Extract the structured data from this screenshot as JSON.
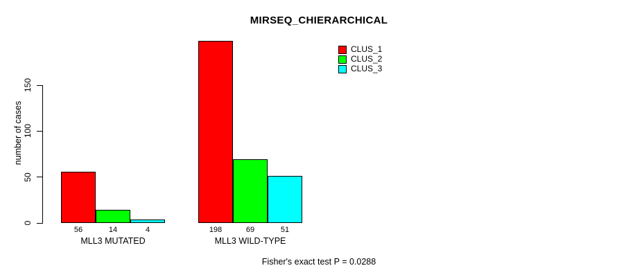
{
  "title": "MIRSEQ_CHIERARCHICAL",
  "ylabel": "number of cases",
  "caption": "Fisher's exact test P = 0.0288",
  "chart_data": {
    "type": "bar",
    "title": "MIRSEQ_CHIERARCHICAL",
    "xlabel": "",
    "ylabel": "number of cases",
    "categories": [
      "MLL3 MUTATED",
      "MLL3 WILD-TYPE"
    ],
    "series": [
      {
        "name": "CLUS_1",
        "color": "#ff0000",
        "values": [
          56,
          198
        ]
      },
      {
        "name": "CLUS_2",
        "color": "#00ff00",
        "values": [
          14,
          69
        ]
      },
      {
        "name": "CLUS_3",
        "color": "#00ffff",
        "values": [
          4,
          51
        ]
      }
    ],
    "yticks": [
      0,
      50,
      100,
      150
    ],
    "ylim": [
      0,
      150
    ],
    "bar_value_labels": [
      [
        56,
        14,
        4
      ],
      [
        198,
        69,
        51
      ]
    ],
    "annotation": "Fisher's exact test P = 0.0288",
    "legend_position": "top-right",
    "legend_border": false,
    "grid": false,
    "bar_border_color": "#000000",
    "background_color": "#ffffff"
  }
}
